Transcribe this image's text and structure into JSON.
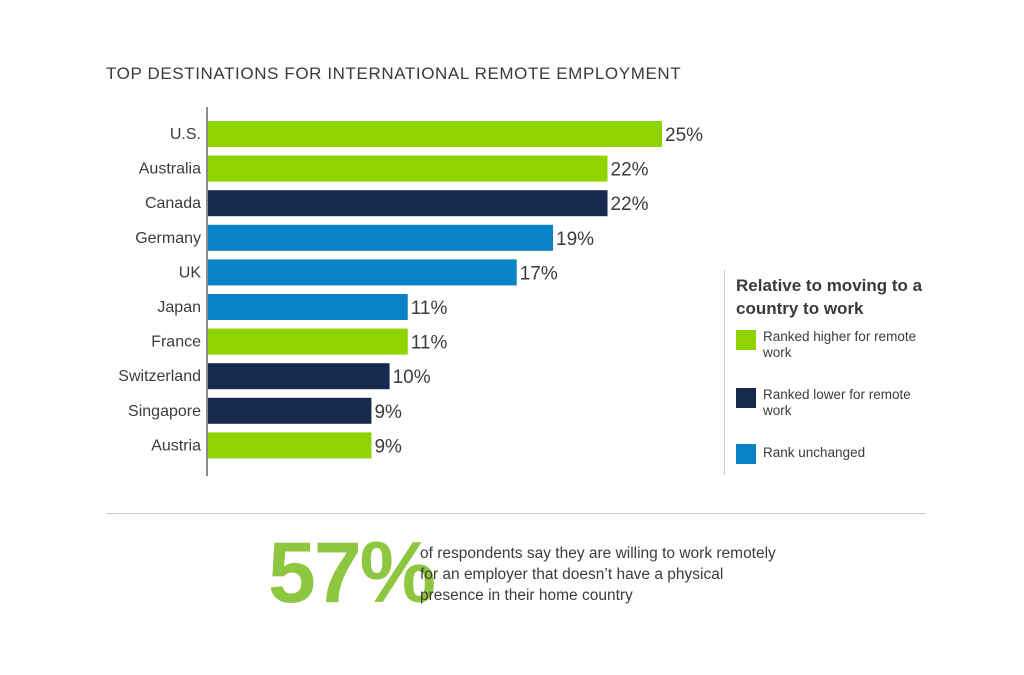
{
  "colors": {
    "higher": "#8fd400",
    "lower": "#172a4e",
    "unchanged": "#0a82c8",
    "axis": "#8a8a8a",
    "stat": "#8dc63f"
  },
  "chart_data": {
    "type": "bar",
    "orientation": "horizontal",
    "title": "TOP DESTINATIONS FOR INTERNATIONAL REMOTE EMPLOYMENT",
    "categories": [
      "U.S.",
      "Australia",
      "Canada",
      "Germany",
      "UK",
      "Japan",
      "France",
      "Switzerland",
      "Singapore",
      "Austria"
    ],
    "values": [
      25,
      22,
      22,
      19,
      17,
      11,
      11,
      10,
      9,
      9
    ],
    "value_labels": [
      "25%",
      "22%",
      "22%",
      "19%",
      "17%",
      "11%",
      "11%",
      "10%",
      "9%",
      "9%"
    ],
    "rank_change": [
      "higher",
      "higher",
      "lower",
      "unchanged",
      "unchanged",
      "unchanged",
      "higher",
      "lower",
      "lower",
      "higher"
    ],
    "xlim": [
      0,
      25
    ],
    "grid": false,
    "legend_position": "right"
  },
  "legend": {
    "title": "Relative to moving to a country to work",
    "items": [
      {
        "key": "higher",
        "label": "Ranked higher for remote work"
      },
      {
        "key": "lower",
        "label": "Ranked lower for remote work"
      },
      {
        "key": "unchanged",
        "label": "Rank unchanged"
      }
    ]
  },
  "stat": {
    "value": "57%",
    "text": "of respondents say they are willing to work remotely for an employer that doesn’t have a physical presence in their home country"
  }
}
